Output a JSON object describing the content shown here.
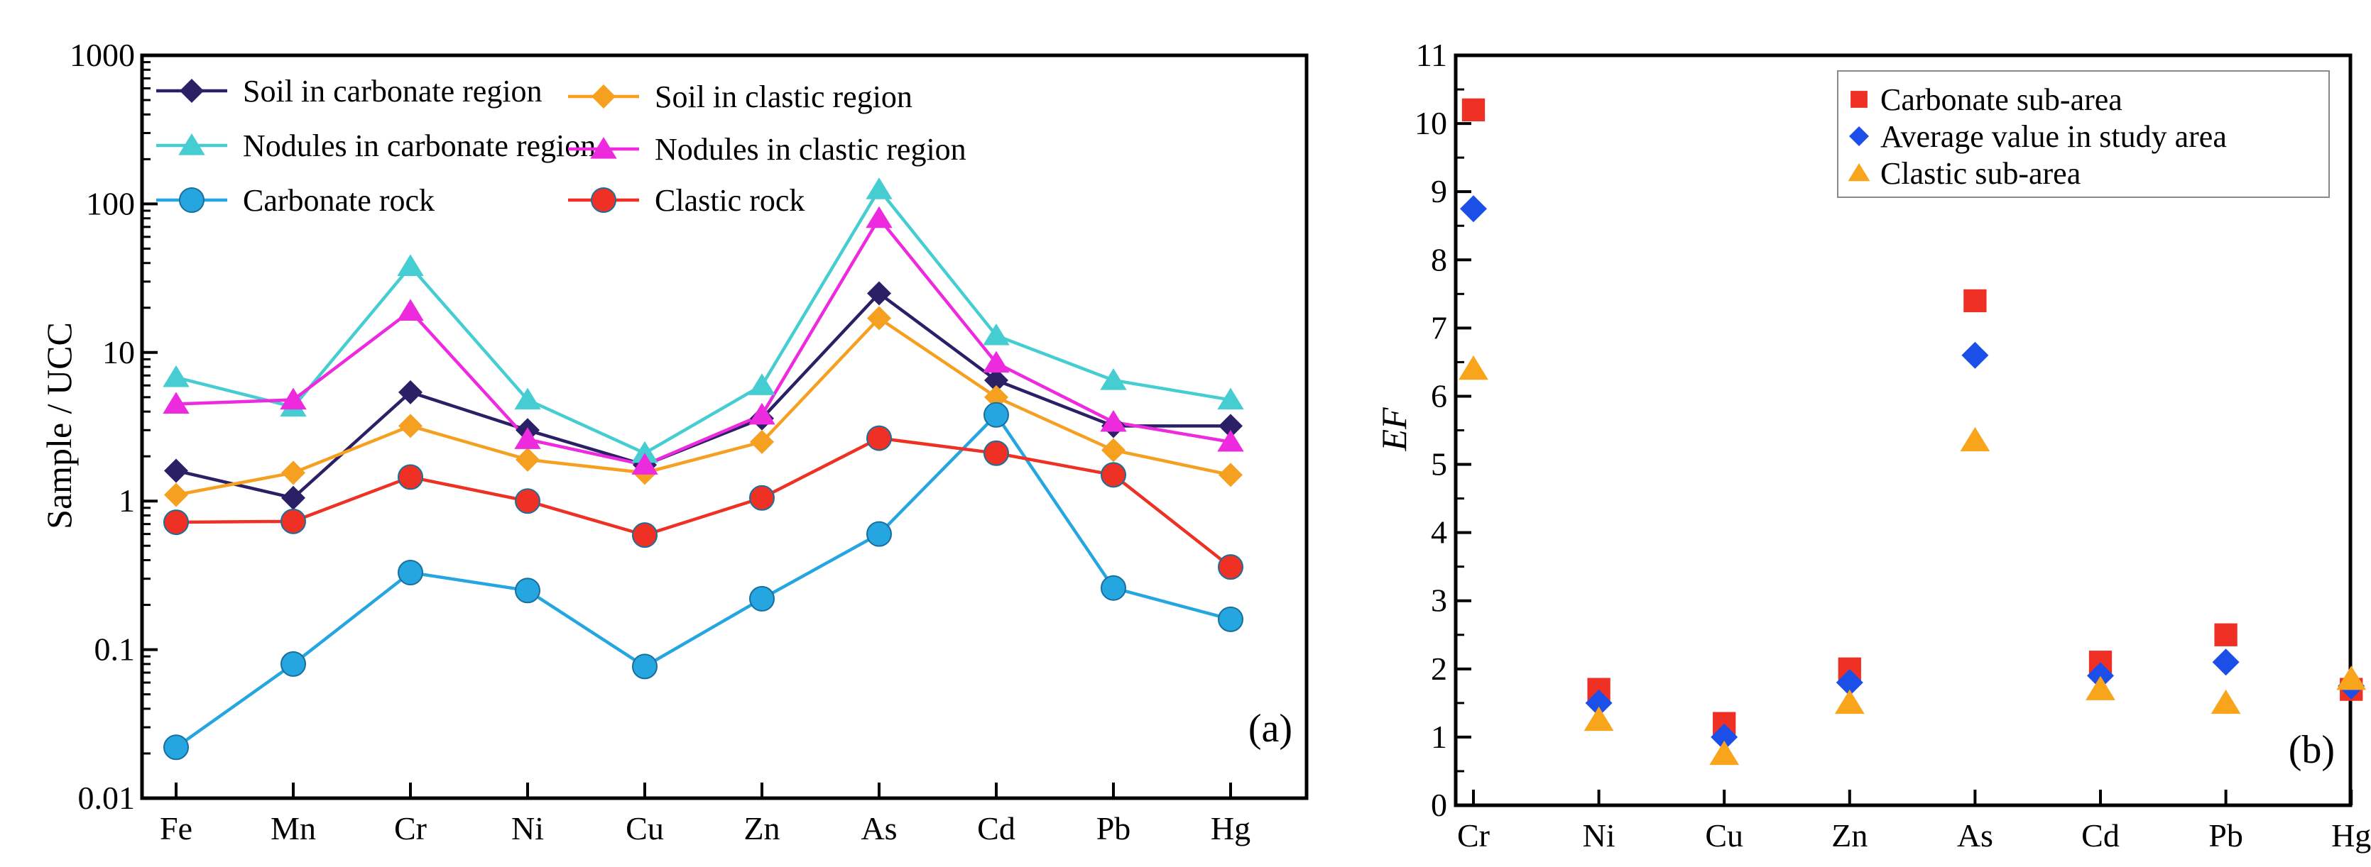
{
  "colors": {
    "soil_carbonate": "#2b1f66",
    "soil_clastic": "#f5a020",
    "nodules_carbonate": "#46cdd2",
    "nodules_clastic": "#ee2adf",
    "carbonate_rock": "#25a6e0",
    "clastic_rock": "#ee3124",
    "ef_carbonate": "#ee3124",
    "ef_average": "#1c4fe8",
    "ef_clastic": "#f8a51c"
  },
  "chart_data": [
    {
      "type": "line",
      "panel_label": "(a)",
      "title": "",
      "xlabel": "",
      "ylabel": "Sample / UCC",
      "yscale": "log",
      "ylim": [
        0.01,
        1000
      ],
      "yticks": [
        "0.01",
        "0.1",
        "1",
        "10",
        "100",
        "1000"
      ],
      "categories": [
        "Fe",
        "Mn",
        "Cr",
        "Ni",
        "Cu",
        "Zn",
        "As",
        "Cd",
        "Pb",
        "Hg"
      ],
      "legend": "top-left",
      "grid": false,
      "series": [
        {
          "name": "Soil in carbonate region",
          "marker": "diamond",
          "color": "#2b1f66",
          "values": [
            1.6,
            1.05,
            5.4,
            3.0,
            1.75,
            3.6,
            25,
            6.5,
            3.2,
            3.2
          ]
        },
        {
          "name": "Soil in clastic region",
          "marker": "diamond",
          "color": "#f5a020",
          "values": [
            1.1,
            1.55,
            3.2,
            1.9,
            1.55,
            2.5,
            17,
            5.0,
            2.2,
            1.5
          ]
        },
        {
          "name": "Nodules in carbonate region",
          "marker": "triangle",
          "color": "#46cdd2",
          "values": [
            6.8,
            4.3,
            38,
            4.8,
            2.1,
            6.0,
            125,
            13,
            6.5,
            4.8
          ]
        },
        {
          "name": "Nodules in clastic region",
          "marker": "triangle",
          "color": "#ee2adf",
          "values": [
            4.5,
            4.8,
            19,
            2.6,
            1.75,
            3.8,
            80,
            8.5,
            3.4,
            2.5
          ]
        },
        {
          "name": "Carbonate rock",
          "marker": "circle",
          "color": "#25a6e0",
          "values": [
            0.022,
            0.08,
            0.33,
            0.25,
            0.077,
            0.22,
            0.6,
            3.8,
            0.26,
            0.16
          ]
        },
        {
          "name": "Clastic rock",
          "marker": "circle",
          "color": "#ee3124",
          "values": [
            0.72,
            0.73,
            1.45,
            1.0,
            0.59,
            1.05,
            2.65,
            2.1,
            1.5,
            0.36
          ]
        }
      ]
    },
    {
      "type": "scatter",
      "panel_label": "(b)",
      "title": "",
      "xlabel": "",
      "ylabel": "EF",
      "ylim": [
        0,
        11
      ],
      "yticks": [
        "0",
        "1",
        "2",
        "3",
        "4",
        "5",
        "6",
        "7",
        "8",
        "9",
        "10",
        "11"
      ],
      "categories": [
        "Cr",
        "Ni",
        "Cu",
        "Zn",
        "As",
        "Cd",
        "Pb",
        "Hg"
      ],
      "legend": "top-right",
      "grid": false,
      "series": [
        {
          "name": "Carbonate sub-area",
          "marker": "square",
          "color": "#ee3124",
          "values": [
            10.2,
            1.7,
            1.2,
            2.0,
            7.4,
            2.1,
            2.5,
            1.7
          ]
        },
        {
          "name": "Average value in study area",
          "marker": "diamond",
          "color": "#1c4fe8",
          "values": [
            8.75,
            1.5,
            1.0,
            1.8,
            6.6,
            1.9,
            2.1,
            1.75
          ]
        },
        {
          "name": "Clastic sub-area",
          "marker": "triangle",
          "color": "#f8a51c",
          "values": [
            6.4,
            1.25,
            0.75,
            1.5,
            5.35,
            1.7,
            1.5,
            1.85
          ]
        }
      ]
    }
  ]
}
